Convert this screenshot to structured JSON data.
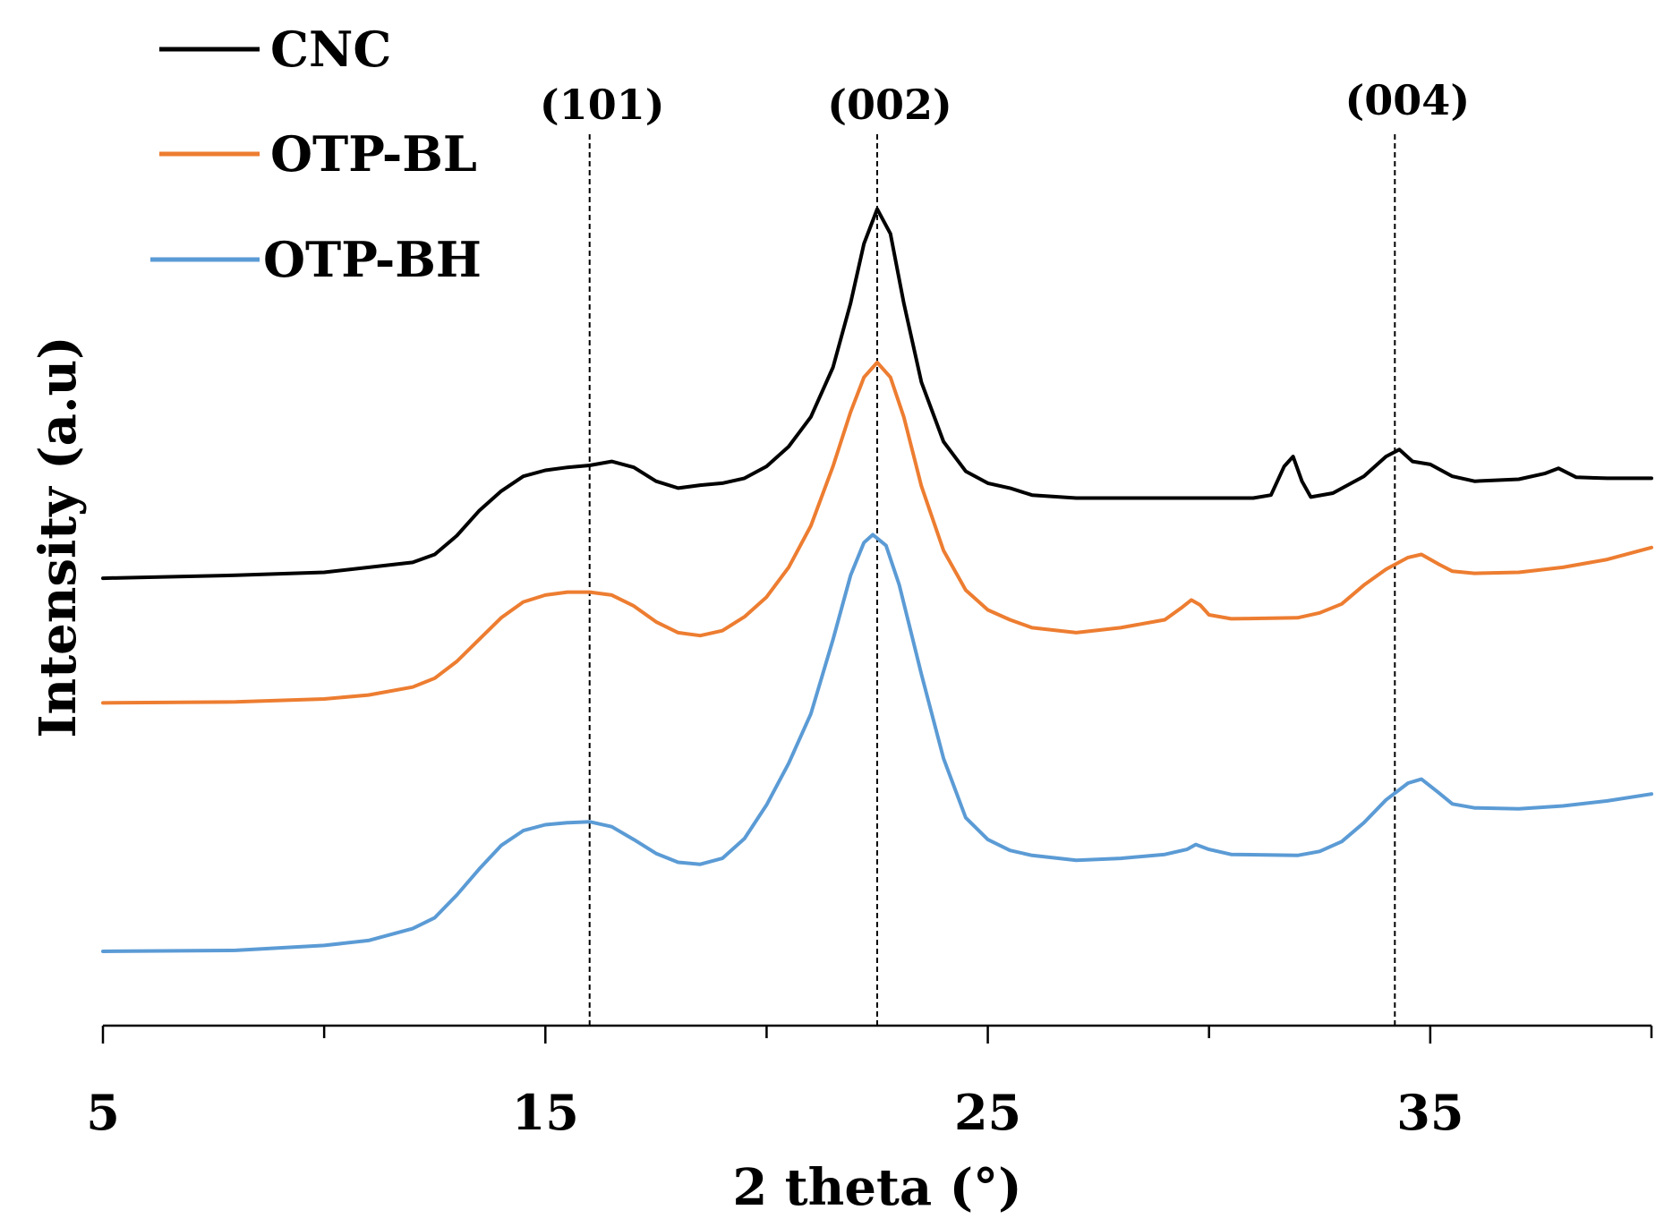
{
  "chart_data": {
    "type": "line",
    "title": "",
    "xlabel": "2 theta (°)",
    "ylabel": "Intensity (a.u)",
    "xlim": [
      5,
      40
    ],
    "ylim": [
      0,
      100
    ],
    "xticks": [
      5,
      15,
      25,
      35
    ],
    "minor_xticks": [
      10,
      20,
      30,
      40
    ],
    "legend_position": "top-left",
    "series": [
      {
        "name": "CNC",
        "color": "#000000",
        "points": [
          [
            5,
            45.2
          ],
          [
            8,
            45.5
          ],
          [
            10,
            45.8
          ],
          [
            12,
            46.8
          ],
          [
            12.5,
            47.6
          ],
          [
            13,
            49.5
          ],
          [
            13.5,
            52
          ],
          [
            14,
            54
          ],
          [
            14.5,
            55.5
          ],
          [
            15,
            56.1
          ],
          [
            15.5,
            56.4
          ],
          [
            16,
            56.6
          ],
          [
            16.5,
            57
          ],
          [
            17,
            56.4
          ],
          [
            17.5,
            55
          ],
          [
            18,
            54.3
          ],
          [
            18.5,
            54.6
          ],
          [
            19,
            54.8
          ],
          [
            19.5,
            55.3
          ],
          [
            20,
            56.5
          ],
          [
            20.5,
            58.5
          ],
          [
            21,
            61.5
          ],
          [
            21.5,
            66.5
          ],
          [
            21.9,
            73
          ],
          [
            22.2,
            79
          ],
          [
            22.5,
            82.5
          ],
          [
            22.8,
            80
          ],
          [
            23.1,
            73
          ],
          [
            23.5,
            65
          ],
          [
            24,
            59
          ],
          [
            24.5,
            56
          ],
          [
            25,
            54.8
          ],
          [
            25.5,
            54.3
          ],
          [
            26,
            53.6
          ],
          [
            27,
            53.3
          ],
          [
            29,
            53.3
          ],
          [
            31,
            53.3
          ],
          [
            31.4,
            53.6
          ],
          [
            31.7,
            56.5
          ],
          [
            31.9,
            57.5
          ],
          [
            32.1,
            55
          ],
          [
            32.3,
            53.4
          ],
          [
            32.8,
            53.8
          ],
          [
            33.5,
            55.5
          ],
          [
            34,
            57.5
          ],
          [
            34.3,
            58.2
          ],
          [
            34.6,
            57
          ],
          [
            35,
            56.7
          ],
          [
            35.5,
            55.5
          ],
          [
            36,
            55
          ],
          [
            37,
            55.2
          ],
          [
            37.6,
            55.8
          ],
          [
            37.9,
            56.3
          ],
          [
            38.3,
            55.4
          ],
          [
            39,
            55.3
          ],
          [
            40,
            55.3
          ]
        ]
      },
      {
        "name": "OTP-BL",
        "color": "#ed7d31",
        "points": [
          [
            5,
            32.6
          ],
          [
            8,
            32.7
          ],
          [
            10,
            33
          ],
          [
            11,
            33.4
          ],
          [
            12,
            34.2
          ],
          [
            12.5,
            35.1
          ],
          [
            13,
            36.8
          ],
          [
            13.5,
            39
          ],
          [
            14,
            41.2
          ],
          [
            14.5,
            42.8
          ],
          [
            15,
            43.5
          ],
          [
            15.5,
            43.8
          ],
          [
            16,
            43.8
          ],
          [
            16.5,
            43.5
          ],
          [
            17,
            42.4
          ],
          [
            17.5,
            40.8
          ],
          [
            18,
            39.7
          ],
          [
            18.5,
            39.4
          ],
          [
            19,
            39.9
          ],
          [
            19.5,
            41.3
          ],
          [
            20,
            43.3
          ],
          [
            20.5,
            46.3
          ],
          [
            21,
            50.5
          ],
          [
            21.5,
            56.5
          ],
          [
            21.9,
            62
          ],
          [
            22.2,
            65.5
          ],
          [
            22.5,
            67
          ],
          [
            22.8,
            65.5
          ],
          [
            23.1,
            61.5
          ],
          [
            23.5,
            54.5
          ],
          [
            24,
            48
          ],
          [
            24.5,
            44
          ],
          [
            25,
            42
          ],
          [
            25.5,
            41
          ],
          [
            26,
            40.2
          ],
          [
            27,
            39.7
          ],
          [
            28,
            40.2
          ],
          [
            29,
            41
          ],
          [
            29.4,
            42.3
          ],
          [
            29.6,
            43
          ],
          [
            29.8,
            42.5
          ],
          [
            30,
            41.5
          ],
          [
            30.5,
            41.1
          ],
          [
            32,
            41.2
          ],
          [
            32.5,
            41.7
          ],
          [
            33,
            42.6
          ],
          [
            33.5,
            44.5
          ],
          [
            34,
            46.1
          ],
          [
            34.5,
            47.3
          ],
          [
            34.8,
            47.6
          ],
          [
            35.2,
            46.6
          ],
          [
            35.5,
            45.9
          ],
          [
            36,
            45.7
          ],
          [
            37,
            45.8
          ],
          [
            38,
            46.3
          ],
          [
            39,
            47.1
          ],
          [
            40,
            48.3
          ]
        ]
      },
      {
        "name": "OTP-BH",
        "color": "#5b9bd5",
        "points": [
          [
            5,
            7.5
          ],
          [
            8,
            7.6
          ],
          [
            10,
            8.1
          ],
          [
            11,
            8.6
          ],
          [
            12,
            9.8
          ],
          [
            12.5,
            10.9
          ],
          [
            13,
            13.2
          ],
          [
            13.5,
            15.8
          ],
          [
            14,
            18.2
          ],
          [
            14.5,
            19.7
          ],
          [
            15,
            20.3
          ],
          [
            15.5,
            20.5
          ],
          [
            16,
            20.6
          ],
          [
            16.5,
            20.1
          ],
          [
            17,
            18.8
          ],
          [
            17.5,
            17.4
          ],
          [
            18,
            16.5
          ],
          [
            18.5,
            16.3
          ],
          [
            19,
            16.9
          ],
          [
            19.5,
            18.9
          ],
          [
            20,
            22.3
          ],
          [
            20.5,
            26.5
          ],
          [
            21,
            31.5
          ],
          [
            21.5,
            39
          ],
          [
            21.9,
            45.5
          ],
          [
            22.2,
            48.8
          ],
          [
            22.4,
            49.6
          ],
          [
            22.7,
            48.5
          ],
          [
            23,
            44.5
          ],
          [
            23.5,
            35.5
          ],
          [
            24,
            27
          ],
          [
            24.5,
            21
          ],
          [
            25,
            18.8
          ],
          [
            25.5,
            17.7
          ],
          [
            26,
            17.2
          ],
          [
            27,
            16.7
          ],
          [
            28,
            16.9
          ],
          [
            29,
            17.3
          ],
          [
            29.5,
            17.8
          ],
          [
            29.7,
            18.3
          ],
          [
            30,
            17.8
          ],
          [
            30.5,
            17.3
          ],
          [
            32,
            17.2
          ],
          [
            32.5,
            17.6
          ],
          [
            33,
            18.6
          ],
          [
            33.5,
            20.5
          ],
          [
            34,
            22.8
          ],
          [
            34.5,
            24.5
          ],
          [
            34.8,
            24.9
          ],
          [
            35.2,
            23.5
          ],
          [
            35.5,
            22.4
          ],
          [
            36,
            22
          ],
          [
            37,
            21.9
          ],
          [
            38,
            22.2
          ],
          [
            39,
            22.7
          ],
          [
            40,
            23.4
          ]
        ]
      }
    ],
    "reference_lines": [
      {
        "x": 16,
        "label": "(101)"
      },
      {
        "x": 22.5,
        "label": "(002)"
      },
      {
        "x": 34.2,
        "label": "(004)"
      }
    ]
  }
}
